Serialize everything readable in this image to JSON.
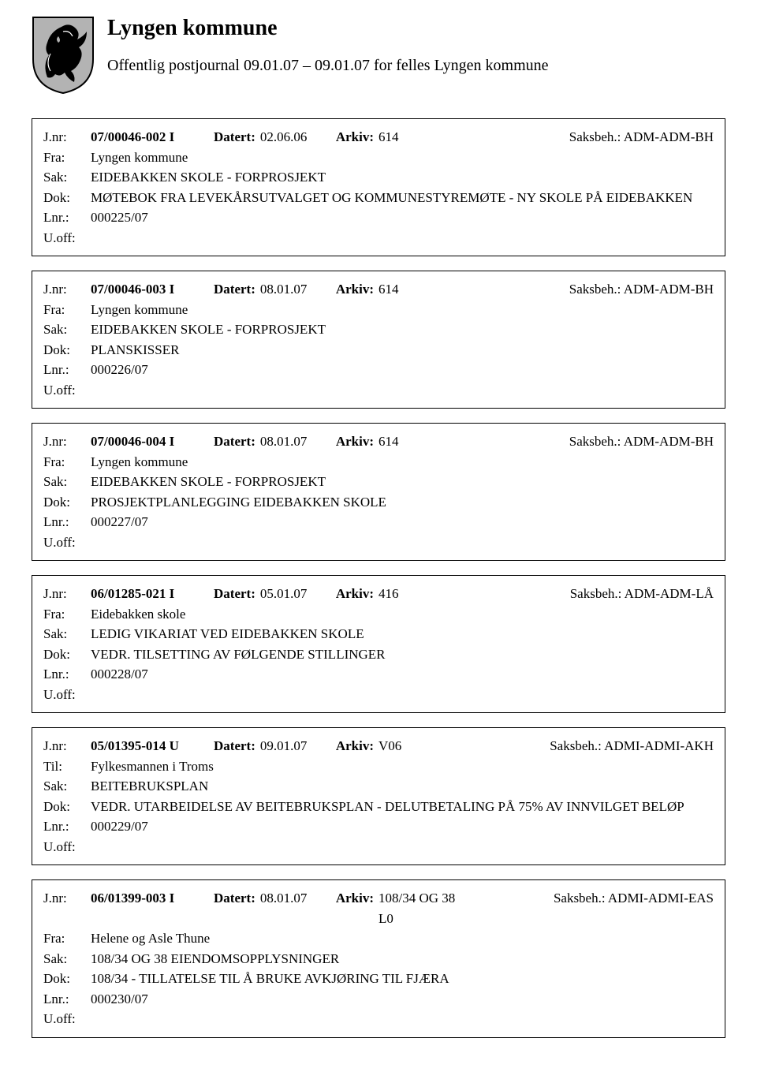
{
  "header": {
    "title": "Lyngen kommune",
    "subtitle": "Offentlig postjournal 09.01.07 – 09.01.07 for felles Lyngen kommune"
  },
  "labels": {
    "jnr": "J.nr:",
    "fra": "Fra:",
    "til": "Til:",
    "sak": "Sak:",
    "dok": "Dok:",
    "lnr": "Lnr.:",
    "uoff": "U.off:",
    "datert": "Datert:",
    "arkiv": "Arkiv:",
    "saksbeh": "Saksbeh.:"
  },
  "entries": [
    {
      "jnr": "07/00046-002 I",
      "datert": "02.06.06",
      "arkiv": "614",
      "saksbeh": "ADM-ADM-BH",
      "party_label": "Fra:",
      "party": "Lyngen kommune",
      "sak": "EIDEBAKKEN SKOLE - FORPROSJEKT",
      "dok": "MØTEBOK FRA LEVEKÅRSUTVALGET OG KOMMUNESTYREMØTE - NY SKOLE PÅ EIDEBAKKEN",
      "lnr": "000225/07",
      "uoff": ""
    },
    {
      "jnr": "07/00046-003 I",
      "datert": "08.01.07",
      "arkiv": "614",
      "saksbeh": "ADM-ADM-BH",
      "party_label": "Fra:",
      "party": "Lyngen kommune",
      "sak": "EIDEBAKKEN SKOLE - FORPROSJEKT",
      "dok": "PLANSKISSER",
      "lnr": "000226/07",
      "uoff": ""
    },
    {
      "jnr": "07/00046-004 I",
      "datert": "08.01.07",
      "arkiv": "614",
      "saksbeh": "ADM-ADM-BH",
      "party_label": "Fra:",
      "party": "Lyngen kommune",
      "sak": "EIDEBAKKEN SKOLE - FORPROSJEKT",
      "dok": "PROSJEKTPLANLEGGING EIDEBAKKEN SKOLE",
      "lnr": "000227/07",
      "uoff": ""
    },
    {
      "jnr": "06/01285-021 I",
      "datert": "05.01.07",
      "arkiv": "416",
      "saksbeh": "ADM-ADM-LÅ",
      "party_label": "Fra:",
      "party": "Eidebakken skole",
      "sak": "LEDIG VIKARIAT VED EIDEBAKKEN SKOLE",
      "dok": "VEDR. TILSETTING AV FØLGENDE STILLINGER",
      "lnr": "000228/07",
      "uoff": ""
    },
    {
      "jnr": "05/01395-014 U",
      "datert": "09.01.07",
      "arkiv": "V06",
      "saksbeh": "ADMI-ADMI-AKH",
      "party_label": "Til:",
      "party": "Fylkesmannen i Troms",
      "sak": "BEITEBRUKSPLAN",
      "dok": "VEDR. UTARBEIDELSE AV BEITEBRUKSPLAN - DELUTBETALING PÅ 75% AV INNVILGET BELØP",
      "lnr": "000229/07",
      "uoff": ""
    },
    {
      "jnr": "06/01399-003 I",
      "datert": "08.01.07",
      "arkiv": "108/34 OG 38 L0",
      "arkiv_line1": "108/34 OG 38",
      "arkiv_line2": "L0",
      "saksbeh": "ADMI-ADMI-EAS",
      "party_label": "Fra:",
      "party": "Helene og Asle Thune",
      "sak": "108/34 OG 38 EIENDOMSOPPLYSNINGER",
      "dok": "108/34 - TILLATELSE TIL Å BRUKE AVKJØRING TIL FJÆRA",
      "lnr": "000230/07",
      "uoff": ""
    }
  ],
  "crest": {
    "shield_fill": "#b3b3b3",
    "shield_stroke": "#000000",
    "horse_fill": "#000000"
  }
}
